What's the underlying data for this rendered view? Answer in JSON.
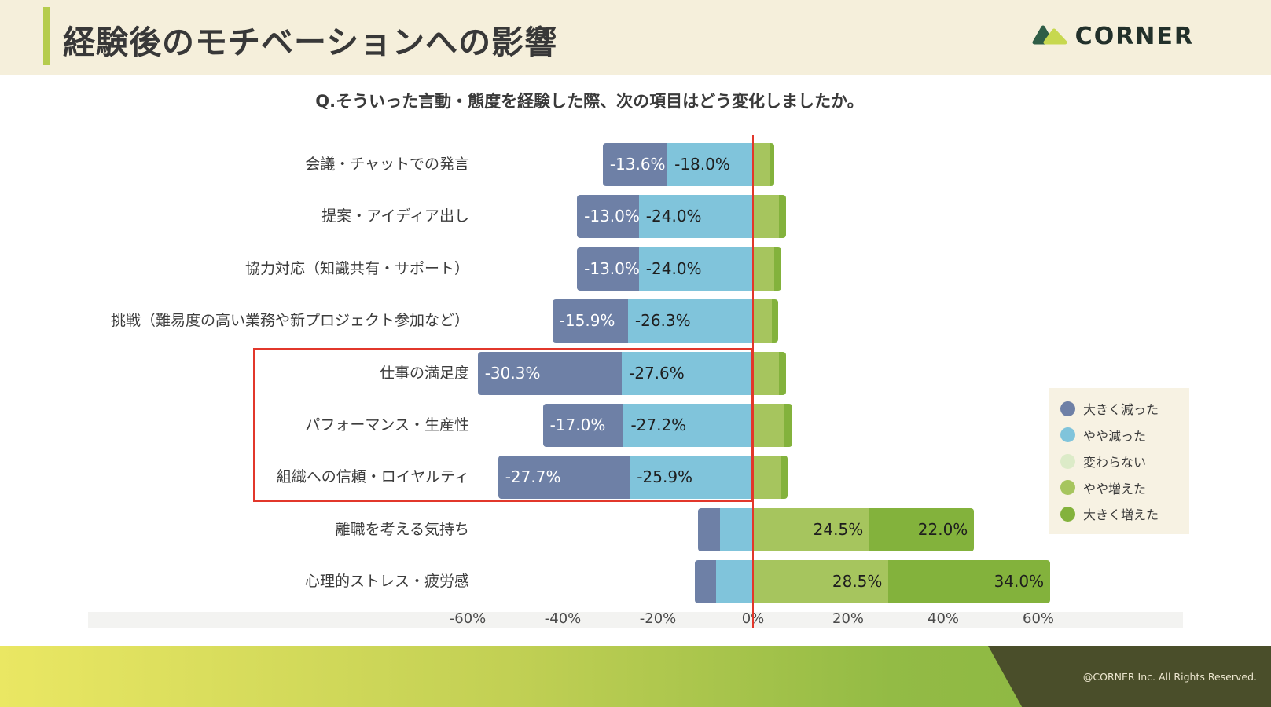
{
  "header": {
    "title": "経験後のモチベーションへの影響",
    "brand": "CORNER"
  },
  "question": "Q.そういった言動・態度を経験した際、次の項目はどう変化しましたか。",
  "colors": {
    "big_decrease": "#6e80a6",
    "slight_decrease": "#80c4db",
    "unchanged": "#dcebc8",
    "slight_increase": "#a6c55e",
    "big_increase": "#83b23c",
    "highlight_red": "#e2372b"
  },
  "legend": {
    "items": [
      {
        "label": "大きく減った",
        "color_key": "big_decrease"
      },
      {
        "label": "やや減った",
        "color_key": "slight_decrease"
      },
      {
        "label": "変わらない",
        "color_key": "unchanged"
      },
      {
        "label": "やや増えた",
        "color_key": "slight_increase"
      },
      {
        "label": "大きく増えた",
        "color_key": "big_increase"
      }
    ]
  },
  "chart_data": {
    "type": "bar",
    "orientation": "horizontal_diverging_stacked",
    "title": "経験後のモチベーションへの影響",
    "x_ticks": [
      "-60%",
      "-40%",
      "-20%",
      "0%",
      "20%",
      "40%",
      "60%"
    ],
    "xlim": [
      -70,
      70
    ],
    "series_order": [
      "big_decrease",
      "slight_decrease",
      "slight_increase",
      "big_increase"
    ],
    "rows": [
      {
        "category": "会議・チャットでの発言",
        "values": {
          "big_decrease": 13.6,
          "slight_decrease": 18.0,
          "slight_increase": 3.5,
          "big_increase": 1.0
        },
        "labels": {
          "big_decrease": "-13.6%",
          "slight_decrease": "-18.0%",
          "slight_increase": "",
          "big_increase": ""
        }
      },
      {
        "category": "提案・アイディア出し",
        "values": {
          "big_decrease": 13.0,
          "slight_decrease": 24.0,
          "slight_increase": 5.5,
          "big_increase": 1.5
        },
        "labels": {
          "big_decrease": "-13.0%",
          "slight_decrease": "-24.0%",
          "slight_increase": "",
          "big_increase": ""
        }
      },
      {
        "category": "協力対応（知識共有・サポート）",
        "values": {
          "big_decrease": 13.0,
          "slight_decrease": 24.0,
          "slight_increase": 4.5,
          "big_increase": 1.5
        },
        "labels": {
          "big_decrease": "-13.0%",
          "slight_decrease": "-24.0%",
          "slight_increase": "",
          "big_increase": ""
        }
      },
      {
        "category": "挑戦（難易度の高い業務や新プロジェクト参加など）",
        "values": {
          "big_decrease": 15.9,
          "slight_decrease": 26.3,
          "slight_increase": 4.0,
          "big_increase": 1.3
        },
        "labels": {
          "big_decrease": "-15.9%",
          "slight_decrease": "-26.3%",
          "slight_increase": "",
          "big_increase": ""
        }
      },
      {
        "category": "仕事の満足度",
        "values": {
          "big_decrease": 30.3,
          "slight_decrease": 27.6,
          "slight_increase": 5.5,
          "big_increase": 1.5
        },
        "labels": {
          "big_decrease": "-30.3%",
          "slight_decrease": "-27.6%",
          "slight_increase": "",
          "big_increase": ""
        }
      },
      {
        "category": "パフォーマンス・生産性",
        "values": {
          "big_decrease": 17.0,
          "slight_decrease": 27.2,
          "slight_increase": 6.5,
          "big_increase": 1.8
        },
        "labels": {
          "big_decrease": "-17.0%",
          "slight_decrease": "-27.2%",
          "slight_increase": "",
          "big_increase": ""
        }
      },
      {
        "category": "組織への信頼・ロイヤルティ",
        "values": {
          "big_decrease": 27.7,
          "slight_decrease": 25.9,
          "slight_increase": 5.8,
          "big_increase": 1.5
        },
        "labels": {
          "big_decrease": "-27.7%",
          "slight_decrease": "-25.9%",
          "slight_increase": "",
          "big_increase": ""
        }
      },
      {
        "category": "離職を考える気持ち",
        "values": {
          "big_decrease": 4.5,
          "slight_decrease": 7.0,
          "slight_increase": 24.5,
          "big_increase": 22.0
        },
        "labels": {
          "big_decrease": "",
          "slight_decrease": "",
          "slight_increase": "24.5%",
          "big_increase": "22.0%"
        }
      },
      {
        "category": "心理的ストレス・疲労感",
        "values": {
          "big_decrease": 4.5,
          "slight_decrease": 7.8,
          "slight_increase": 28.5,
          "big_increase": 34.0
        },
        "labels": {
          "big_decrease": "",
          "slight_decrease": "",
          "slight_increase": "28.5%",
          "big_increase": "34.0%"
        }
      }
    ],
    "highlighted_categories": [
      "仕事の満足度",
      "パフォーマンス・生産性",
      "組織への信頼・ロイヤルティ"
    ]
  },
  "footer": {
    "copyright": "@CORNER Inc. All Rights Reserved."
  }
}
